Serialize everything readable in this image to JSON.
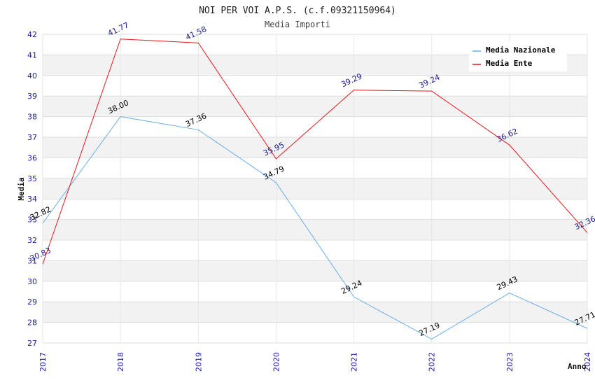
{
  "chart_data": {
    "type": "line",
    "title": "NOI PER VOI A.P.S. (c.f.09321150964)",
    "subtitle": "Media Importi",
    "xlabel": "Anno",
    "ylabel": "Media",
    "x": [
      "2017",
      "2018",
      "2019",
      "2020",
      "2021",
      "2022",
      "2023",
      "2024"
    ],
    "ylim": [
      27,
      42
    ],
    "yticks": [
      27,
      28,
      29,
      30,
      31,
      32,
      33,
      34,
      35,
      36,
      37,
      38,
      39,
      40,
      41,
      42
    ],
    "grid": true,
    "legend_position": "top-right",
    "series": [
      {
        "name": "Media Nazionale",
        "color": "#6aaee8",
        "label_color": "#000000",
        "values": [
          32.82,
          38.0,
          37.36,
          34.79,
          29.24,
          27.19,
          29.43,
          27.71
        ],
        "labels": [
          "32.82",
          "38.00",
          "37.36",
          "34.79",
          "29.24",
          "27.19",
          "29.43",
          "27.71"
        ]
      },
      {
        "name": "Media Ente",
        "color": "#e8141c",
        "label_color": "#1a1a8c",
        "values": [
          30.83,
          41.77,
          41.58,
          35.95,
          39.29,
          39.24,
          36.62,
          32.36
        ],
        "labels": [
          "30.83",
          "41.77",
          "41.58",
          "35.95",
          "39.29",
          "39.24",
          "36.62",
          "32.36"
        ]
      }
    ]
  }
}
